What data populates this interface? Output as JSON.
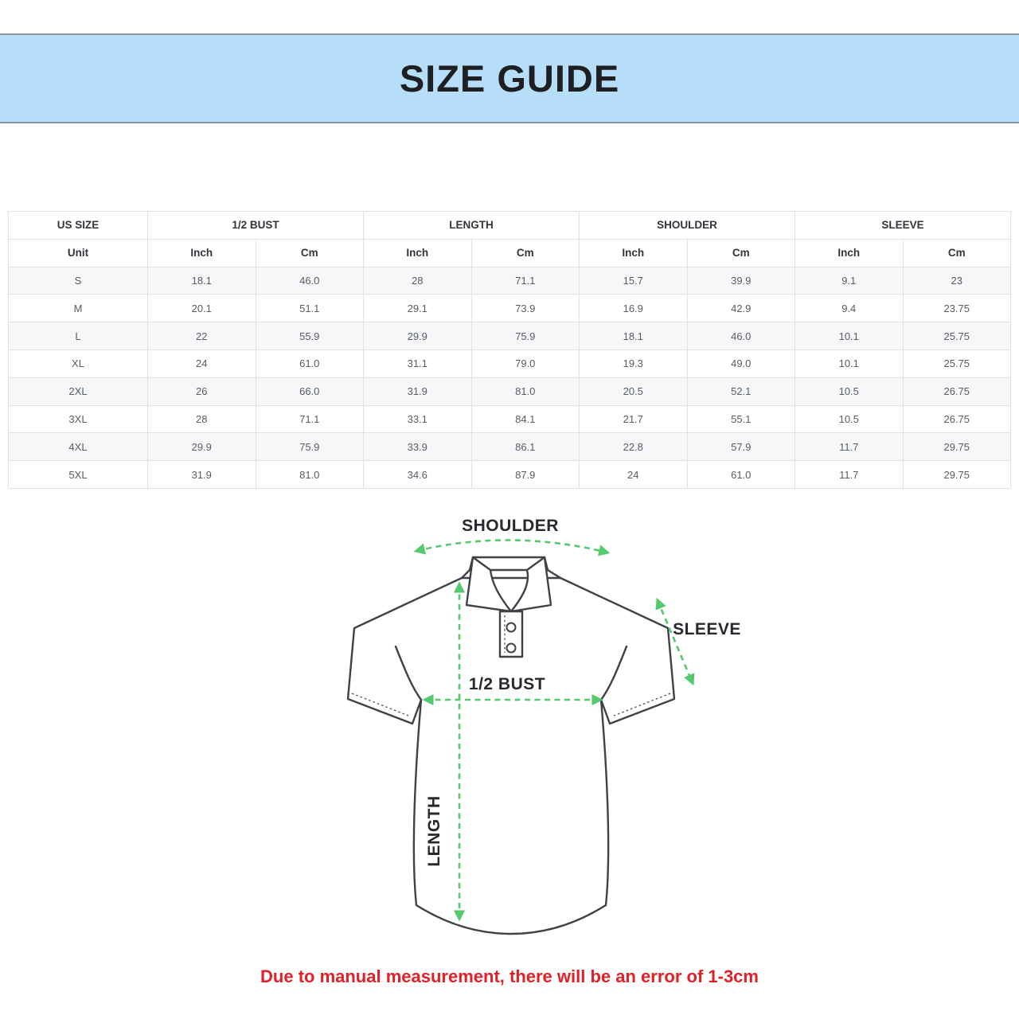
{
  "header": {
    "title": "SIZE GUIDE"
  },
  "table": {
    "groups": [
      {
        "label": "US SIZE"
      },
      {
        "label": "1/2 BUST"
      },
      {
        "label": "LENGTH"
      },
      {
        "label": "SHOULDER"
      },
      {
        "label": "SLEEVE"
      }
    ],
    "unit_row": [
      "Unit",
      "Inch",
      "Cm",
      "Inch",
      "Cm",
      "Inch",
      "Cm",
      "Inch",
      "Cm"
    ],
    "rows": [
      [
        "S",
        "18.1",
        "46.0",
        "28",
        "71.1",
        "15.7",
        "39.9",
        "9.1",
        "23"
      ],
      [
        "M",
        "20.1",
        "51.1",
        "29.1",
        "73.9",
        "16.9",
        "42.9",
        "9.4",
        "23.75"
      ],
      [
        "L",
        "22",
        "55.9",
        "29.9",
        "75.9",
        "18.1",
        "46.0",
        "10.1",
        "25.75"
      ],
      [
        "XL",
        "24",
        "61.0",
        "31.1",
        "79.0",
        "19.3",
        "49.0",
        "10.1",
        "25.75"
      ],
      [
        "2XL",
        "26",
        "66.0",
        "31.9",
        "81.0",
        "20.5",
        "52.1",
        "10.5",
        "26.75"
      ],
      [
        "3XL",
        "28",
        "71.1",
        "33.1",
        "84.1",
        "21.7",
        "55.1",
        "10.5",
        "26.75"
      ],
      [
        "4XL",
        "29.9",
        "75.9",
        "33.9",
        "86.1",
        "22.8",
        "57.9",
        "11.7",
        "29.75"
      ],
      [
        "5XL",
        "31.9",
        "81.0",
        "34.6",
        "87.9",
        "24",
        "61.0",
        "11.7",
        "29.75"
      ]
    ]
  },
  "diagram": {
    "labels": {
      "shoulder": "SHOULDER",
      "sleeve": "SLEEVE",
      "half_bust": "1/2 BUST",
      "length": "LENGTH"
    }
  },
  "note": {
    "text": "Due to manual measurement, there will be an error of 1-3cm"
  },
  "colors": {
    "banner_bg": "#b7def8",
    "accent_green": "#55c96e",
    "note_red": "#e02128",
    "shirt_line": "#3f4247"
  }
}
